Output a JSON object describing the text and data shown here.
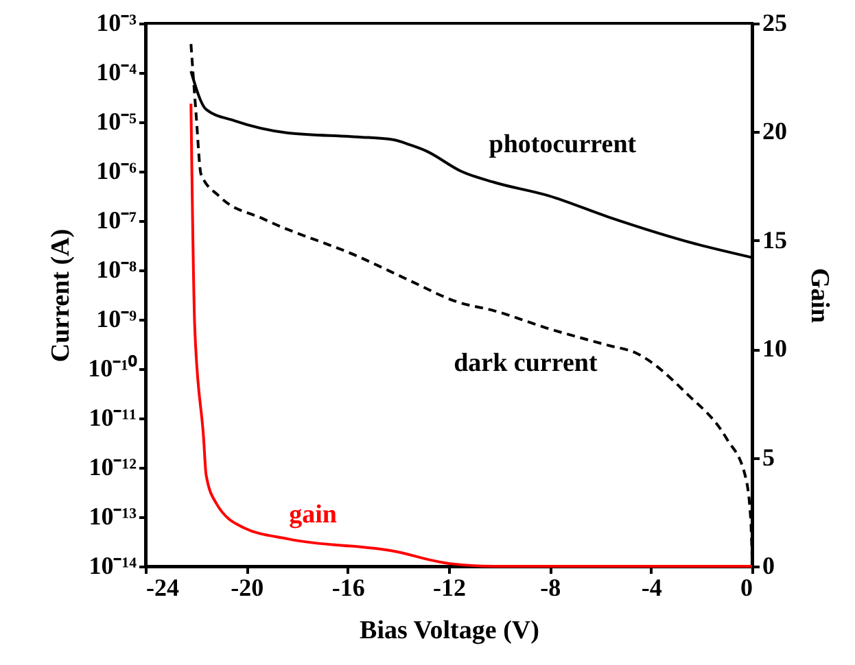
{
  "chart_data": {
    "type": "line",
    "xlabel": "Bias Voltage (V)",
    "ylabel": "Current (A)",
    "y2label": "Gain",
    "log": "y",
    "grid": false,
    "marker": "none",
    "xlim": [
      -24,
      0
    ],
    "xticks": [
      -24,
      -20,
      -16,
      -12,
      -8,
      -4,
      0
    ],
    "ylim": [
      1e-14,
      0.001
    ],
    "yticks": [
      {
        "value": 1e-14,
        "label": "10⁻¹⁴"
      },
      {
        "value": 1e-13,
        "label": "10⁻¹³"
      },
      {
        "value": 1e-12,
        "label": "10⁻¹²"
      },
      {
        "value": 1e-11,
        "label": "10⁻¹¹"
      },
      {
        "value": 1e-10,
        "label": "10⁻¹⁰"
      },
      {
        "value": 1e-09,
        "label": "10⁻⁹"
      },
      {
        "value": 1e-08,
        "label": "10⁻⁸"
      },
      {
        "value": 1e-07,
        "label": "10⁻⁷"
      },
      {
        "value": 1e-06,
        "label": "10⁻⁶"
      },
      {
        "value": 1e-05,
        "label": "10⁻⁵"
      },
      {
        "value": 0.0001,
        "label": "10⁻⁴"
      },
      {
        "value": 0.001,
        "label": "10⁻³"
      }
    ],
    "y2lim": [
      0,
      25
    ],
    "y2ticks": [
      0,
      5,
      10,
      15,
      20,
      25
    ],
    "series": [
      {
        "name": "photocurrent",
        "color": "#000000",
        "line_style": "solid",
        "x": [
          -22.2,
          -21.6,
          -20.5,
          -18.35,
          -15.6,
          -14.2,
          -13.5,
          -12.9,
          -11.5,
          -10.2,
          -8.04,
          -5.7,
          -2.23,
          0
        ],
        "values": [
          0.000107,
          1.8e-05,
          1.07e-05,
          6e-06,
          5e-06,
          4.4e-06,
          3.4e-06,
          2.6e-06,
          1e-06,
          6e-07,
          3.2e-07,
          1.2e-07,
          3.4e-08,
          1.8e-08
        ]
      },
      {
        "name": "dark current",
        "color": "#000000",
        "line_style": "dashed",
        "x": [
          -22.2,
          -22.0,
          -21.8,
          -21.1,
          -19.3,
          -15.6,
          -13.5,
          -11.7,
          -10.2,
          -8.04,
          -5.7,
          -4.6,
          -2.6,
          -1.0,
          -0.27,
          -0.05,
          0
        ],
        "values": [
          0.00038,
          1.5e-05,
          8.7e-07,
          3.2e-07,
          1.07e-07,
          1.9e-08,
          6e-09,
          2.3e-09,
          1.5e-09,
          6.5e-10,
          3e-10,
          2.1e-10,
          3.2e-11,
          3.8e-12,
          6.8e-13,
          8.3e-14,
          1.5e-14
        ]
      },
      {
        "name": "gain",
        "color": "#ff0000",
        "line_style": "solid",
        "axis": "y2",
        "x": [
          -22.2,
          -22.05,
          -21.7,
          -21.6,
          -21.2,
          -20.1,
          -18.35,
          -14.2,
          -12,
          -10.2,
          0
        ],
        "values": [
          21.3,
          11,
          5.9,
          4.2,
          2.9,
          1.77,
          1.26,
          0.7,
          0.13,
          0,
          0
        ]
      }
    ]
  }
}
